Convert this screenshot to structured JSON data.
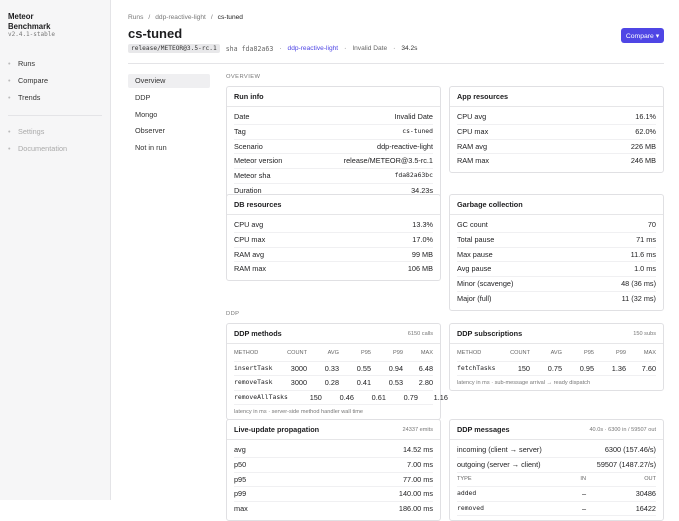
{
  "sidebar": {
    "brand": [
      "Meteor",
      "Benchmark"
    ],
    "version": "v2.4.1-stable",
    "nav": [
      "Runs",
      "Compare",
      "Trends"
    ],
    "secondary": [
      "Settings",
      "Documentation"
    ]
  },
  "header": {
    "breadcrumbs": [
      "Runs",
      "ddp-reactive-light",
      "cs-tuned"
    ],
    "separator": "/",
    "title": "cs-tuned",
    "tag": "release/METEOR@3.5-rc.1",
    "sha": "sha fda82a63",
    "scenario": "ddp-reactive-light",
    "date": "Invalid Date",
    "duration": "34.2s",
    "dot": "·",
    "button": "Compare ▾"
  },
  "tabs": [
    "Overview",
    "DDP",
    "Mongo",
    "Observer",
    "Not in run"
  ],
  "sections": [
    "OVERVIEW",
    "DDP"
  ],
  "cards": [
    {
      "title": "Run info",
      "rows": [
        [
          "Date",
          "Invalid Date"
        ],
        [
          "Tag",
          "cs-tuned"
        ],
        [
          "Scenario",
          "ddp-reactive-light"
        ],
        [
          "Meteor version",
          "release/METEOR@3.5-rc.1"
        ],
        [
          "Meteor sha",
          "fda82a63bc"
        ],
        [
          "Duration",
          "34.23s"
        ]
      ]
    },
    {
      "title": "App resources",
      "rows": [
        [
          "CPU avg",
          "16.1%"
        ],
        [
          "CPU max",
          "62.0%"
        ],
        [
          "RAM avg",
          "226 MB"
        ],
        [
          "RAM max",
          "246 MB"
        ]
      ]
    },
    {
      "title": "DB resources",
      "rows": [
        [
          "CPU avg",
          "13.3%"
        ],
        [
          "CPU max",
          "17.0%"
        ],
        [
          "RAM avg",
          "99 MB"
        ],
        [
          "RAM max",
          "106 MB"
        ]
      ]
    },
    {
      "title": "Garbage collection",
      "rows": [
        [
          "GC count",
          "70"
        ],
        [
          "Total pause",
          "71 ms"
        ],
        [
          "Max pause",
          "11.6 ms"
        ],
        [
          "Avg pause",
          "1.0 ms"
        ],
        [
          "Minor (scavenge)",
          "48 (36 ms)"
        ],
        [
          "Major (full)",
          "11 (32 ms)"
        ]
      ]
    },
    {
      "title": "DDP methods",
      "meta": "6150 calls",
      "table": {
        "columns": [
          "METHOD",
          "COUNT",
          "AVG",
          "P95",
          "P99",
          "MAX"
        ],
        "rows": [
          [
            "insertTask",
            "3000",
            "0.33",
            "0.55",
            "0.94",
            "6.48"
          ],
          [
            "removeTask",
            "3000",
            "0.28",
            "0.41",
            "0.53",
            "2.80"
          ],
          [
            "removeAllTasks",
            "150",
            "0.46",
            "0.61",
            "0.79",
            "1.16"
          ]
        ]
      },
      "footnote": "latency in ms · server-side method handler wall time"
    },
    {
      "title": "DDP subscriptions",
      "meta": "150 subs",
      "table": {
        "columns": [
          "METHOD",
          "COUNT",
          "AVG",
          "P95",
          "P99",
          "MAX"
        ],
        "rows": [
          [
            "fetchTasks",
            "150",
            "0.75",
            "0.95",
            "1.36",
            "7.60"
          ]
        ]
      },
      "footnote": "latency in ms · sub-message arrival → ready dispatch"
    },
    {
      "title": "Live-update propagation",
      "meta": "24337 emits",
      "rows": [
        [
          "avg",
          "14.52 ms"
        ],
        [
          "p50",
          "7.00 ms"
        ],
        [
          "p95",
          "77.00 ms"
        ],
        [
          "p99",
          "140.00 ms"
        ],
        [
          "max",
          "186.00 ms"
        ]
      ]
    },
    {
      "title": "DDP messages",
      "meta": "40.0s · 6300 in / 59507 out",
      "rows": [
        [
          "incoming (client → server)",
          "6300 (157.46/s)"
        ],
        [
          "outgoing (server → client)",
          "59507 (1487.27/s)"
        ]
      ],
      "table": {
        "columns": [
          "TYPE",
          "IN",
          "OUT"
        ],
        "rows": [
          [
            "added",
            "–",
            "30486"
          ],
          [
            "removed",
            "–",
            "16422"
          ]
        ]
      }
    }
  ]
}
